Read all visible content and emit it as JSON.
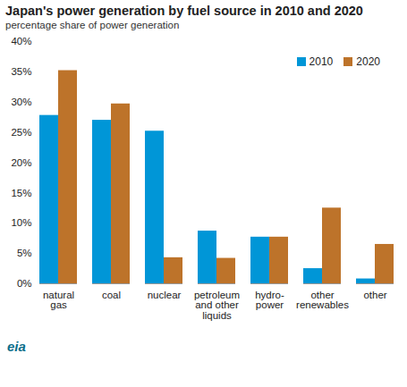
{
  "chart_data": {
    "type": "bar",
    "title": "Japan's power generation by fuel source in 2010 and 2020",
    "subtitle": "percentage share of power generation",
    "source": "eia",
    "categories": [
      "natural gas",
      "coal",
      "nuclear",
      "petroleum and other liquids",
      "hydro-power",
      "other renewables",
      "other"
    ],
    "series": [
      {
        "name": "2010",
        "color": "#0096d7",
        "values": [
          27.8,
          27.0,
          25.2,
          8.7,
          7.7,
          2.5,
          0.8
        ]
      },
      {
        "name": "2020",
        "color": "#bd732a",
        "values": [
          35.2,
          29.7,
          4.3,
          4.2,
          7.7,
          12.5,
          6.5
        ]
      }
    ],
    "ylim": [
      0,
      40
    ],
    "yticks": [
      {
        "value": 0,
        "label": "0%"
      },
      {
        "value": 5,
        "label": "5%"
      },
      {
        "value": 10,
        "label": "10%"
      },
      {
        "value": 15,
        "label": "15%"
      },
      {
        "value": 20,
        "label": "20%"
      },
      {
        "value": 25,
        "label": "25%"
      },
      {
        "value": 30,
        "label": "30%"
      },
      {
        "value": 35,
        "label": "35%"
      },
      {
        "value": 40,
        "label": "40%"
      }
    ],
    "grid": false,
    "legend": "top-right"
  }
}
